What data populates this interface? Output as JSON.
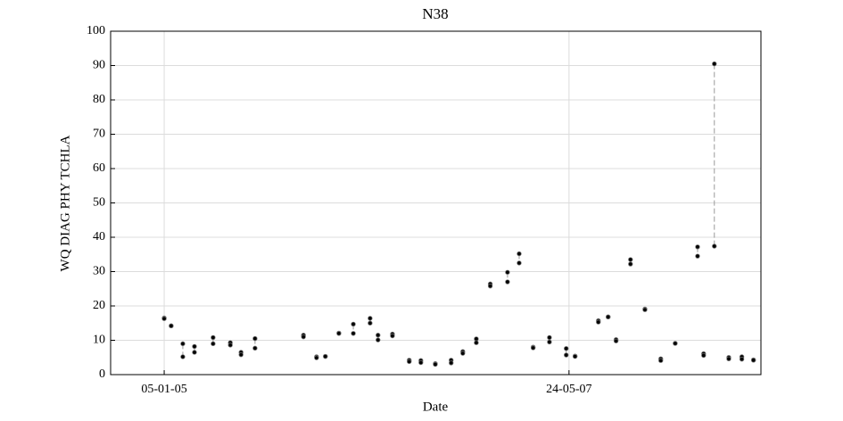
{
  "chart_data": {
    "type": "scatter",
    "title": "N38",
    "x_label": "Date",
    "y_label": "WQ DIAG PHY TCHLA",
    "x": [
      "2005-01-05",
      "2005-01-20",
      "2005-02-14",
      "2005-03-11",
      "2005-04-20",
      "2005-05-27",
      "2005-06-19",
      "2005-07-19",
      "2005-10-31",
      "2005-11-28",
      "2005-12-17",
      "2006-01-15",
      "2006-02-15",
      "2006-03-23",
      "2006-04-09",
      "2006-05-10",
      "2006-06-15",
      "2006-07-10",
      "2006-08-10",
      "2006-09-13",
      "2006-10-08",
      "2006-11-06",
      "2006-12-06",
      "2007-01-12",
      "2007-02-06",
      "2007-03-08",
      "2007-04-12",
      "2007-05-18",
      "2007-06-06",
      "2007-07-26",
      "2007-08-16",
      "2007-09-02",
      "2007-10-03",
      "2007-11-03",
      "2007-12-07",
      "2008-01-07",
      "2008-02-24",
      "2008-03-08",
      "2008-03-31",
      "2008-05-01",
      "2008-05-29",
      "2008-06-23"
    ],
    "series": [
      {
        "color": "#000000",
        "values": [
          16.5,
          14.2,
          9,
          8.2,
          10.8,
          9.3,
          6.5,
          10.5,
          11.5,
          5.2,
          5.3,
          12.1,
          14.7,
          16.4,
          11.5,
          11.8,
          4.2,
          4.1,
          3.2,
          4.2,
          6.7,
          10.4,
          26.4,
          29.8,
          35.2,
          8,
          10.8,
          7.6,
          5.4,
          15.7,
          16.8,
          10.2,
          33.5,
          19.1,
          4.6,
          9.1,
          37.2,
          6.1,
          90.5,
          5,
          5.2,
          4.3
        ]
      },
      {
        "color": "#000000",
        "values": [
          16.3,
          14.2,
          5.2,
          6.5,
          9,
          8.6,
          5.8,
          7.7,
          11,
          4.9,
          5.3,
          12,
          12,
          15,
          10.1,
          11.3,
          3.8,
          3.5,
          3,
          3.4,
          6.2,
          9.3,
          25.8,
          27,
          32.5,
          7.8,
          9.5,
          5.7,
          5.3,
          15.3,
          16.8,
          9.8,
          32.2,
          18.9,
          4.1,
          9.1,
          34.5,
          5.6,
          37.4,
          4.6,
          4.5,
          4.2
        ]
      }
    ],
    "xlim": [
      "2004-09-12",
      "2008-07-09"
    ],
    "xticks": [
      {
        "value": "2005-01-05",
        "label": "05-01-05"
      },
      {
        "value": "2007-05-24",
        "label": "24-05-07"
      }
    ],
    "ylim": [
      0,
      100
    ],
    "yticks": [
      0,
      10,
      20,
      30,
      40,
      50,
      60,
      70,
      80,
      90,
      100
    ],
    "grid": true
  }
}
